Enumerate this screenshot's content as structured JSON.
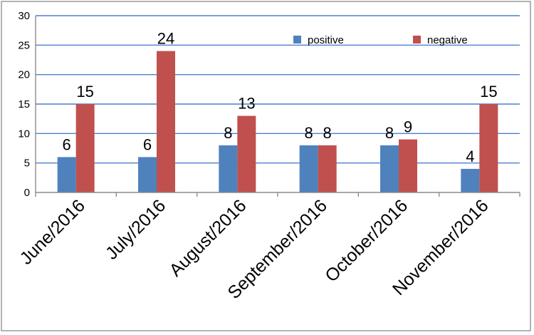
{
  "chart_data": {
    "type": "bar",
    "categories": [
      "June/2016",
      "July/2016",
      "August/2016",
      "September/2016",
      "October/2016",
      "November/2016"
    ],
    "series": [
      {
        "name": "positive",
        "values": [
          6,
          6,
          8,
          8,
          8,
          4
        ],
        "color": "#4f81bd"
      },
      {
        "name": "negative",
        "values": [
          15,
          24,
          13,
          8,
          9,
          15
        ],
        "color": "#c0504d"
      }
    ],
    "ylim": [
      0,
      30
    ],
    "yticks": [
      0,
      5,
      10,
      15,
      20,
      25,
      30
    ],
    "grid": true,
    "legend_position": "top-right",
    "data_labels": true
  }
}
